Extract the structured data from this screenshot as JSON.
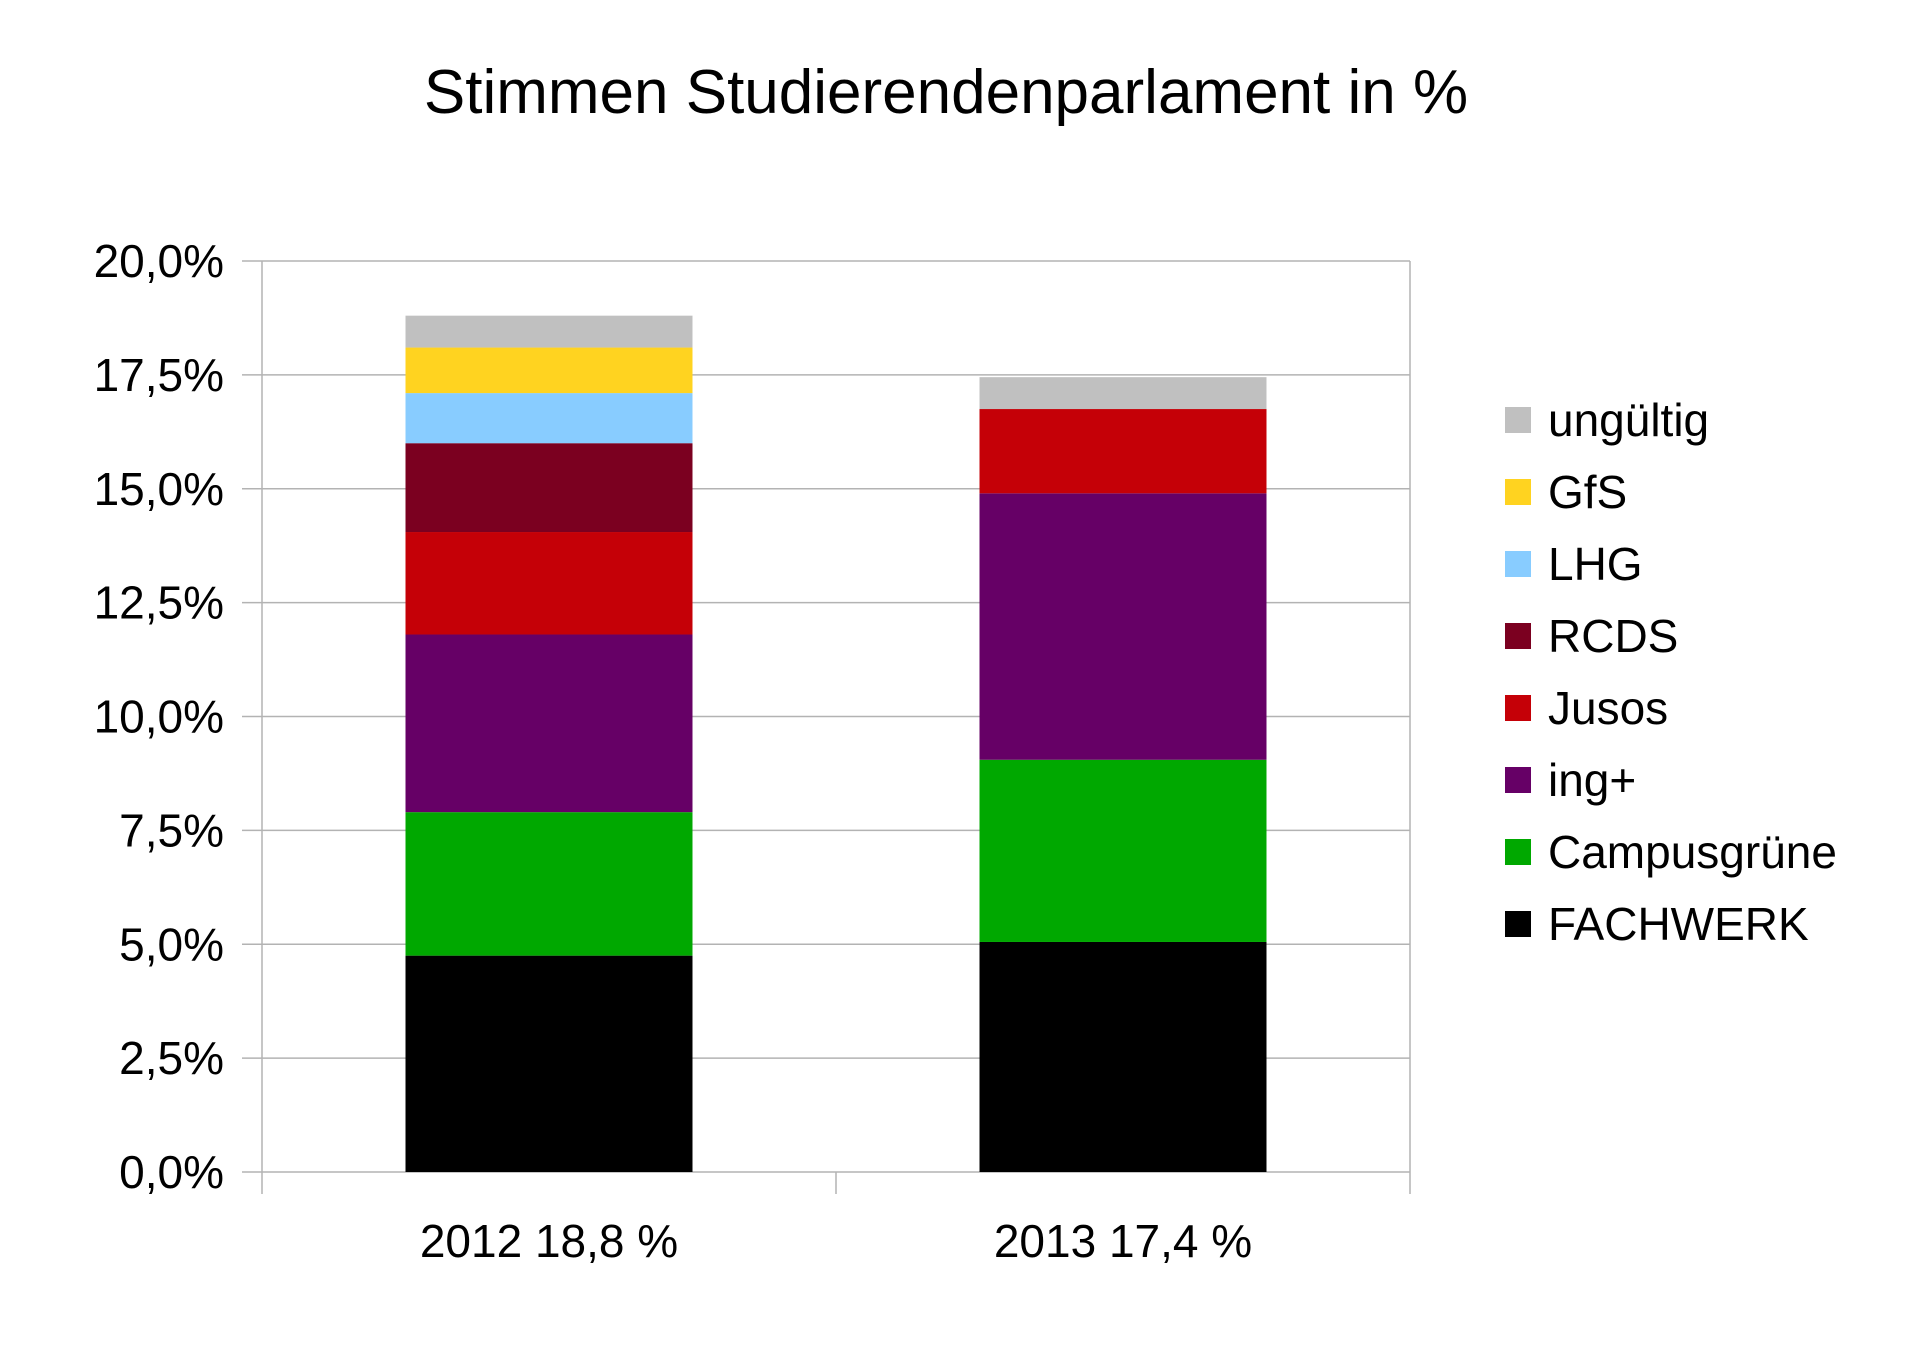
{
  "chart_data": {
    "type": "bar",
    "stacked": true,
    "title": "Stimmen Studierendenparlament in %",
    "xlabel": "",
    "ylabel": "",
    "categories": [
      "2012 18,8 %",
      "2013 17,4 %"
    ],
    "ylim": [
      0,
      20
    ],
    "y_ticks": [
      0,
      2.5,
      5,
      7.5,
      10,
      12.5,
      15,
      17.5,
      20
    ],
    "y_tick_labels": [
      "0,0%",
      "2,5%",
      "5,0%",
      "7,5%",
      "10,0%",
      "12,5%",
      "15,0%",
      "17,5%",
      "20,0%"
    ],
    "grid": true,
    "legend_position": "right",
    "series": [
      {
        "name": "FACHWERK",
        "color": "#000000",
        "values": [
          4.75,
          5.05
        ]
      },
      {
        "name": "Campusgrüne",
        "color": "#00a800",
        "values": [
          3.15,
          4.0
        ]
      },
      {
        "name": "ing+",
        "color": "#660066",
        "values": [
          3.9,
          5.85
        ]
      },
      {
        "name": "Jusos",
        "color": "#c50007",
        "values": [
          2.25,
          1.85
        ]
      },
      {
        "name": "RCDS",
        "color": "#7b0020",
        "values": [
          1.95,
          0.0
        ]
      },
      {
        "name": "LHG",
        "color": "#88ccff",
        "values": [
          1.1,
          0.0
        ]
      },
      {
        "name": "GfS",
        "color": "#ffd320",
        "values": [
          1.0,
          0.0
        ]
      },
      {
        "name": "ungültig",
        "color": "#c0c0c0",
        "values": [
          0.7,
          0.7
        ]
      }
    ]
  }
}
